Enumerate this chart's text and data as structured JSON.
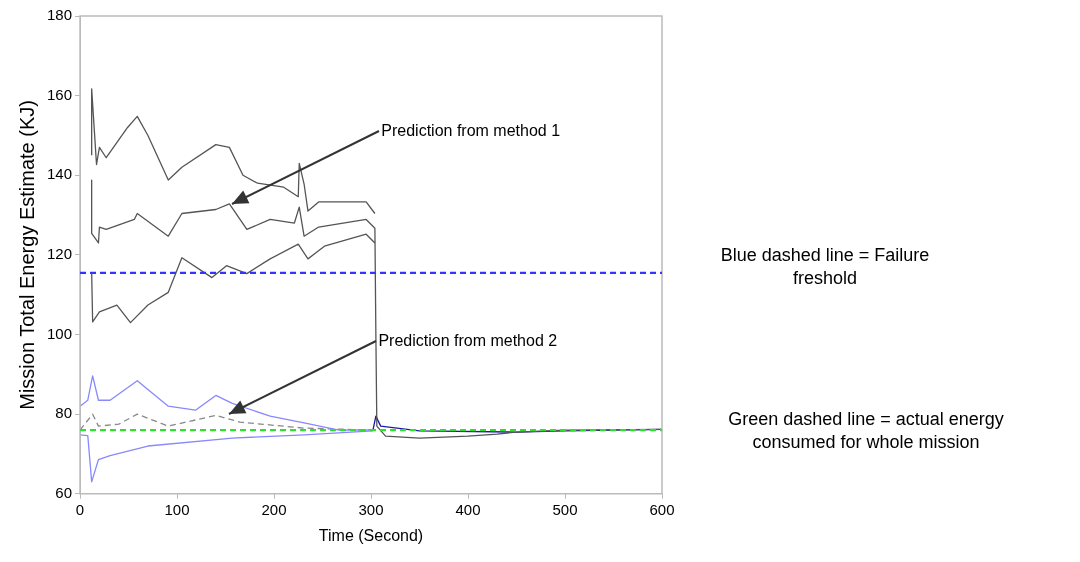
{
  "chart_data": {
    "type": "line",
    "xlabel": "Time (Second)",
    "ylabel": "Mission Total Energy Estimate (KJ)",
    "xlim": [
      0,
      600
    ],
    "ylim": [
      60,
      180
    ],
    "xticks": [
      0,
      100,
      200,
      300,
      400,
      500,
      600
    ],
    "yticks": [
      60,
      80,
      100,
      120,
      140,
      160,
      180
    ],
    "series": [
      {
        "color": "#555555",
        "x": [
          12,
          12,
          17,
          20,
          27,
          49,
          59,
          70,
          91,
          105,
          140,
          154,
          168,
          183,
          210,
          225,
          226,
          231,
          235,
          246,
          295,
          304
        ],
        "values": [
          145,
          161.7,
          142.7,
          147,
          144.4,
          152,
          154.8,
          150,
          138.8,
          142,
          147.7,
          147,
          140,
          138,
          137,
          134.6,
          143,
          137.8,
          131,
          133.3,
          133.3,
          130.4
        ]
      },
      {
        "color": "#555555",
        "x": [
          12,
          12,
          19,
          20,
          27,
          56,
          59,
          91,
          105,
          140,
          154,
          172,
          196,
          221,
          226,
          231,
          246,
          295,
          304,
          305,
          306,
          315,
          350,
          400,
          430,
          450,
          500,
          600
        ],
        "values": [
          138.8,
          125.4,
          123,
          127,
          126.4,
          128.9,
          130.4,
          124.7,
          130.4,
          131.4,
          132.8,
          126.4,
          128.9,
          128,
          132,
          124.7,
          127,
          128.9,
          126.7,
          100,
          77,
          74.5,
          74,
          74.5,
          75,
          75.5,
          76,
          76.2
        ]
      },
      {
        "color": "#555555",
        "x": [
          12,
          13,
          20,
          38,
          52,
          70,
          91,
          105,
          136,
          151,
          172,
          196,
          225,
          235,
          252,
          295,
          304
        ],
        "values": [
          115.5,
          103.2,
          105.7,
          107.4,
          103,
          107.4,
          110.6,
          119.3,
          114.3,
          117.3,
          115.3,
          119,
          122.7,
          119,
          122.2,
          125.2,
          123
        ]
      },
      {
        "color": "#8888ff",
        "x": [
          0,
          8,
          13,
          19,
          31,
          59,
          91,
          119,
          140,
          157,
          196,
          231,
          267,
          302
        ],
        "values": [
          82,
          83.5,
          89.6,
          83.5,
          83.5,
          88.4,
          82,
          81,
          84.7,
          82.7,
          79.5,
          77.8,
          76,
          76
        ]
      },
      {
        "color": "#8888ff",
        "x": [
          0,
          8,
          12,
          19,
          31,
          70,
          157,
          231,
          302
        ],
        "values": [
          74.8,
          74.6,
          63,
          68.6,
          69.6,
          72,
          74,
          74.8,
          75.8
        ]
      },
      {
        "color": "#888888",
        "line_style": "dashed",
        "x": [
          0,
          13,
          19,
          40,
          59,
          91,
          140,
          165,
          231,
          302
        ],
        "values": [
          76,
          80,
          77,
          77.5,
          80,
          77,
          79.7,
          78,
          76.5,
          76
        ]
      },
      {
        "color": "#1a1aa0",
        "x": [
          302,
          305,
          310,
          350,
          450,
          500,
          600
        ],
        "values": [
          76,
          79.5,
          77,
          75.8,
          75.5,
          75.8,
          76.2
        ]
      }
    ],
    "ref_lines": [
      {
        "axis": "y",
        "value": 115.5,
        "color": "#3333ff",
        "line_style": "dashed"
      },
      {
        "axis": "y",
        "value": 76,
        "color": "#33dd33",
        "line_style": "dashed"
      }
    ],
    "annotations": [
      {
        "text": "Prediction from method 1",
        "x": 157,
        "y": 132.8
      },
      {
        "text": "Prediction from method 2",
        "x": 154,
        "y": 80
      },
      "Blue dashed line = Failure freshold",
      "Green dashed line = actual energy consumed for whole mission"
    ]
  }
}
